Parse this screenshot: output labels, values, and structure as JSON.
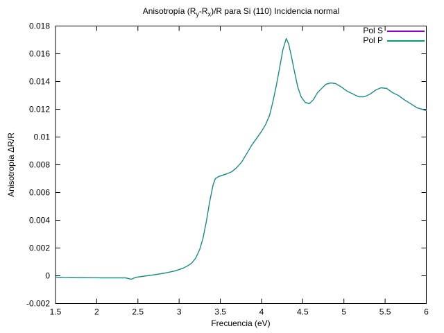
{
  "title": {
    "part1": "Anisotropía (R",
    "sub1": "y",
    "part2": "-R",
    "sub2": "x",
    "part3": ")/R para Si (110) Incidencia normal"
  },
  "chart_data": {
    "type": "line",
    "title": "Anisotropía (R_y-R_x)/R para Si (110) Incidencia normal",
    "xlabel": "Frecuencia (eV)",
    "ylabel": "Anisotropía ΔR/R",
    "xlim": [
      1.5,
      6
    ],
    "ylim": [
      -0.002,
      0.018
    ],
    "xticks": [
      1.5,
      2,
      2.5,
      3,
      3.5,
      4,
      4.5,
      5,
      5.5,
      6
    ],
    "xtick_labels": [
      "1.5",
      "2",
      "2.5",
      "3",
      "3.5",
      "4",
      "4.5",
      "5",
      "5.5",
      "6"
    ],
    "yticks": [
      -0.002,
      0,
      0.002,
      0.004,
      0.006,
      0.008,
      0.01,
      0.012,
      0.014,
      0.016,
      0.018
    ],
    "ytick_labels": [
      "-0.002",
      "0",
      "0.002",
      "0.004",
      "0.006",
      "0.008",
      "0.01",
      "0.012",
      "0.014",
      "0.016",
      "0.018"
    ],
    "grid": false,
    "legend_position": "top-right-inside",
    "axis_color": "#000000",
    "background": "#ffffff",
    "series": [
      {
        "name": "Pol S",
        "color": "#9400d3",
        "overlaps_with": "Pol P"
      },
      {
        "name": "Pol P",
        "color": "#009e73"
      }
    ],
    "points": [
      [
        1.5,
        -0.0001
      ],
      [
        1.6,
        -0.00012
      ],
      [
        1.75,
        -0.00013
      ],
      [
        1.9,
        -0.00014
      ],
      [
        2.05,
        -0.00015
      ],
      [
        2.2,
        -0.00015
      ],
      [
        2.35,
        -0.00015
      ],
      [
        2.42,
        -0.00025
      ],
      [
        2.47,
        -0.00012
      ],
      [
        2.55,
        -5e-05
      ],
      [
        2.65,
        3e-05
      ],
      [
        2.75,
        0.00012
      ],
      [
        2.85,
        0.00022
      ],
      [
        2.95,
        0.00035
      ],
      [
        3.0,
        0.00045
      ],
      [
        3.05,
        0.00055
      ],
      [
        3.1,
        0.0007
      ],
      [
        3.15,
        0.0009
      ],
      [
        3.2,
        0.00125
      ],
      [
        3.25,
        0.0019
      ],
      [
        3.29,
        0.0027
      ],
      [
        3.33,
        0.0039
      ],
      [
        3.37,
        0.0053
      ],
      [
        3.41,
        0.0065
      ],
      [
        3.44,
        0.007
      ],
      [
        3.48,
        0.00715
      ],
      [
        3.53,
        0.00725
      ],
      [
        3.58,
        0.00735
      ],
      [
        3.64,
        0.0075
      ],
      [
        3.7,
        0.0078
      ],
      [
        3.76,
        0.0082
      ],
      [
        3.82,
        0.0088
      ],
      [
        3.88,
        0.0094
      ],
      [
        3.94,
        0.0099
      ],
      [
        4.0,
        0.0104
      ],
      [
        4.05,
        0.0109
      ],
      [
        4.1,
        0.0116
      ],
      [
        4.14,
        0.0126
      ],
      [
        4.18,
        0.0137
      ],
      [
        4.22,
        0.015
      ],
      [
        4.26,
        0.0163
      ],
      [
        4.3,
        0.0171
      ],
      [
        4.33,
        0.0167
      ],
      [
        4.36,
        0.0159
      ],
      [
        4.4,
        0.0147
      ],
      [
        4.44,
        0.0136
      ],
      [
        4.48,
        0.0129
      ],
      [
        4.53,
        0.0125
      ],
      [
        4.58,
        0.0124
      ],
      [
        4.63,
        0.0127
      ],
      [
        4.68,
        0.0132
      ],
      [
        4.73,
        0.0135
      ],
      [
        4.78,
        0.0138
      ],
      [
        4.84,
        0.0139
      ],
      [
        4.9,
        0.01385
      ],
      [
        4.97,
        0.0136
      ],
      [
        5.04,
        0.0133
      ],
      [
        5.11,
        0.0131
      ],
      [
        5.18,
        0.0129
      ],
      [
        5.25,
        0.0129
      ],
      [
        5.32,
        0.0131
      ],
      [
        5.39,
        0.0134
      ],
      [
        5.45,
        0.01355
      ],
      [
        5.52,
        0.0135
      ],
      [
        5.59,
        0.0132
      ],
      [
        5.66,
        0.013
      ],
      [
        5.73,
        0.0127
      ],
      [
        5.81,
        0.0124
      ],
      [
        5.89,
        0.0121
      ],
      [
        5.95,
        0.012
      ],
      [
        6.0,
        0.0119
      ]
    ]
  }
}
